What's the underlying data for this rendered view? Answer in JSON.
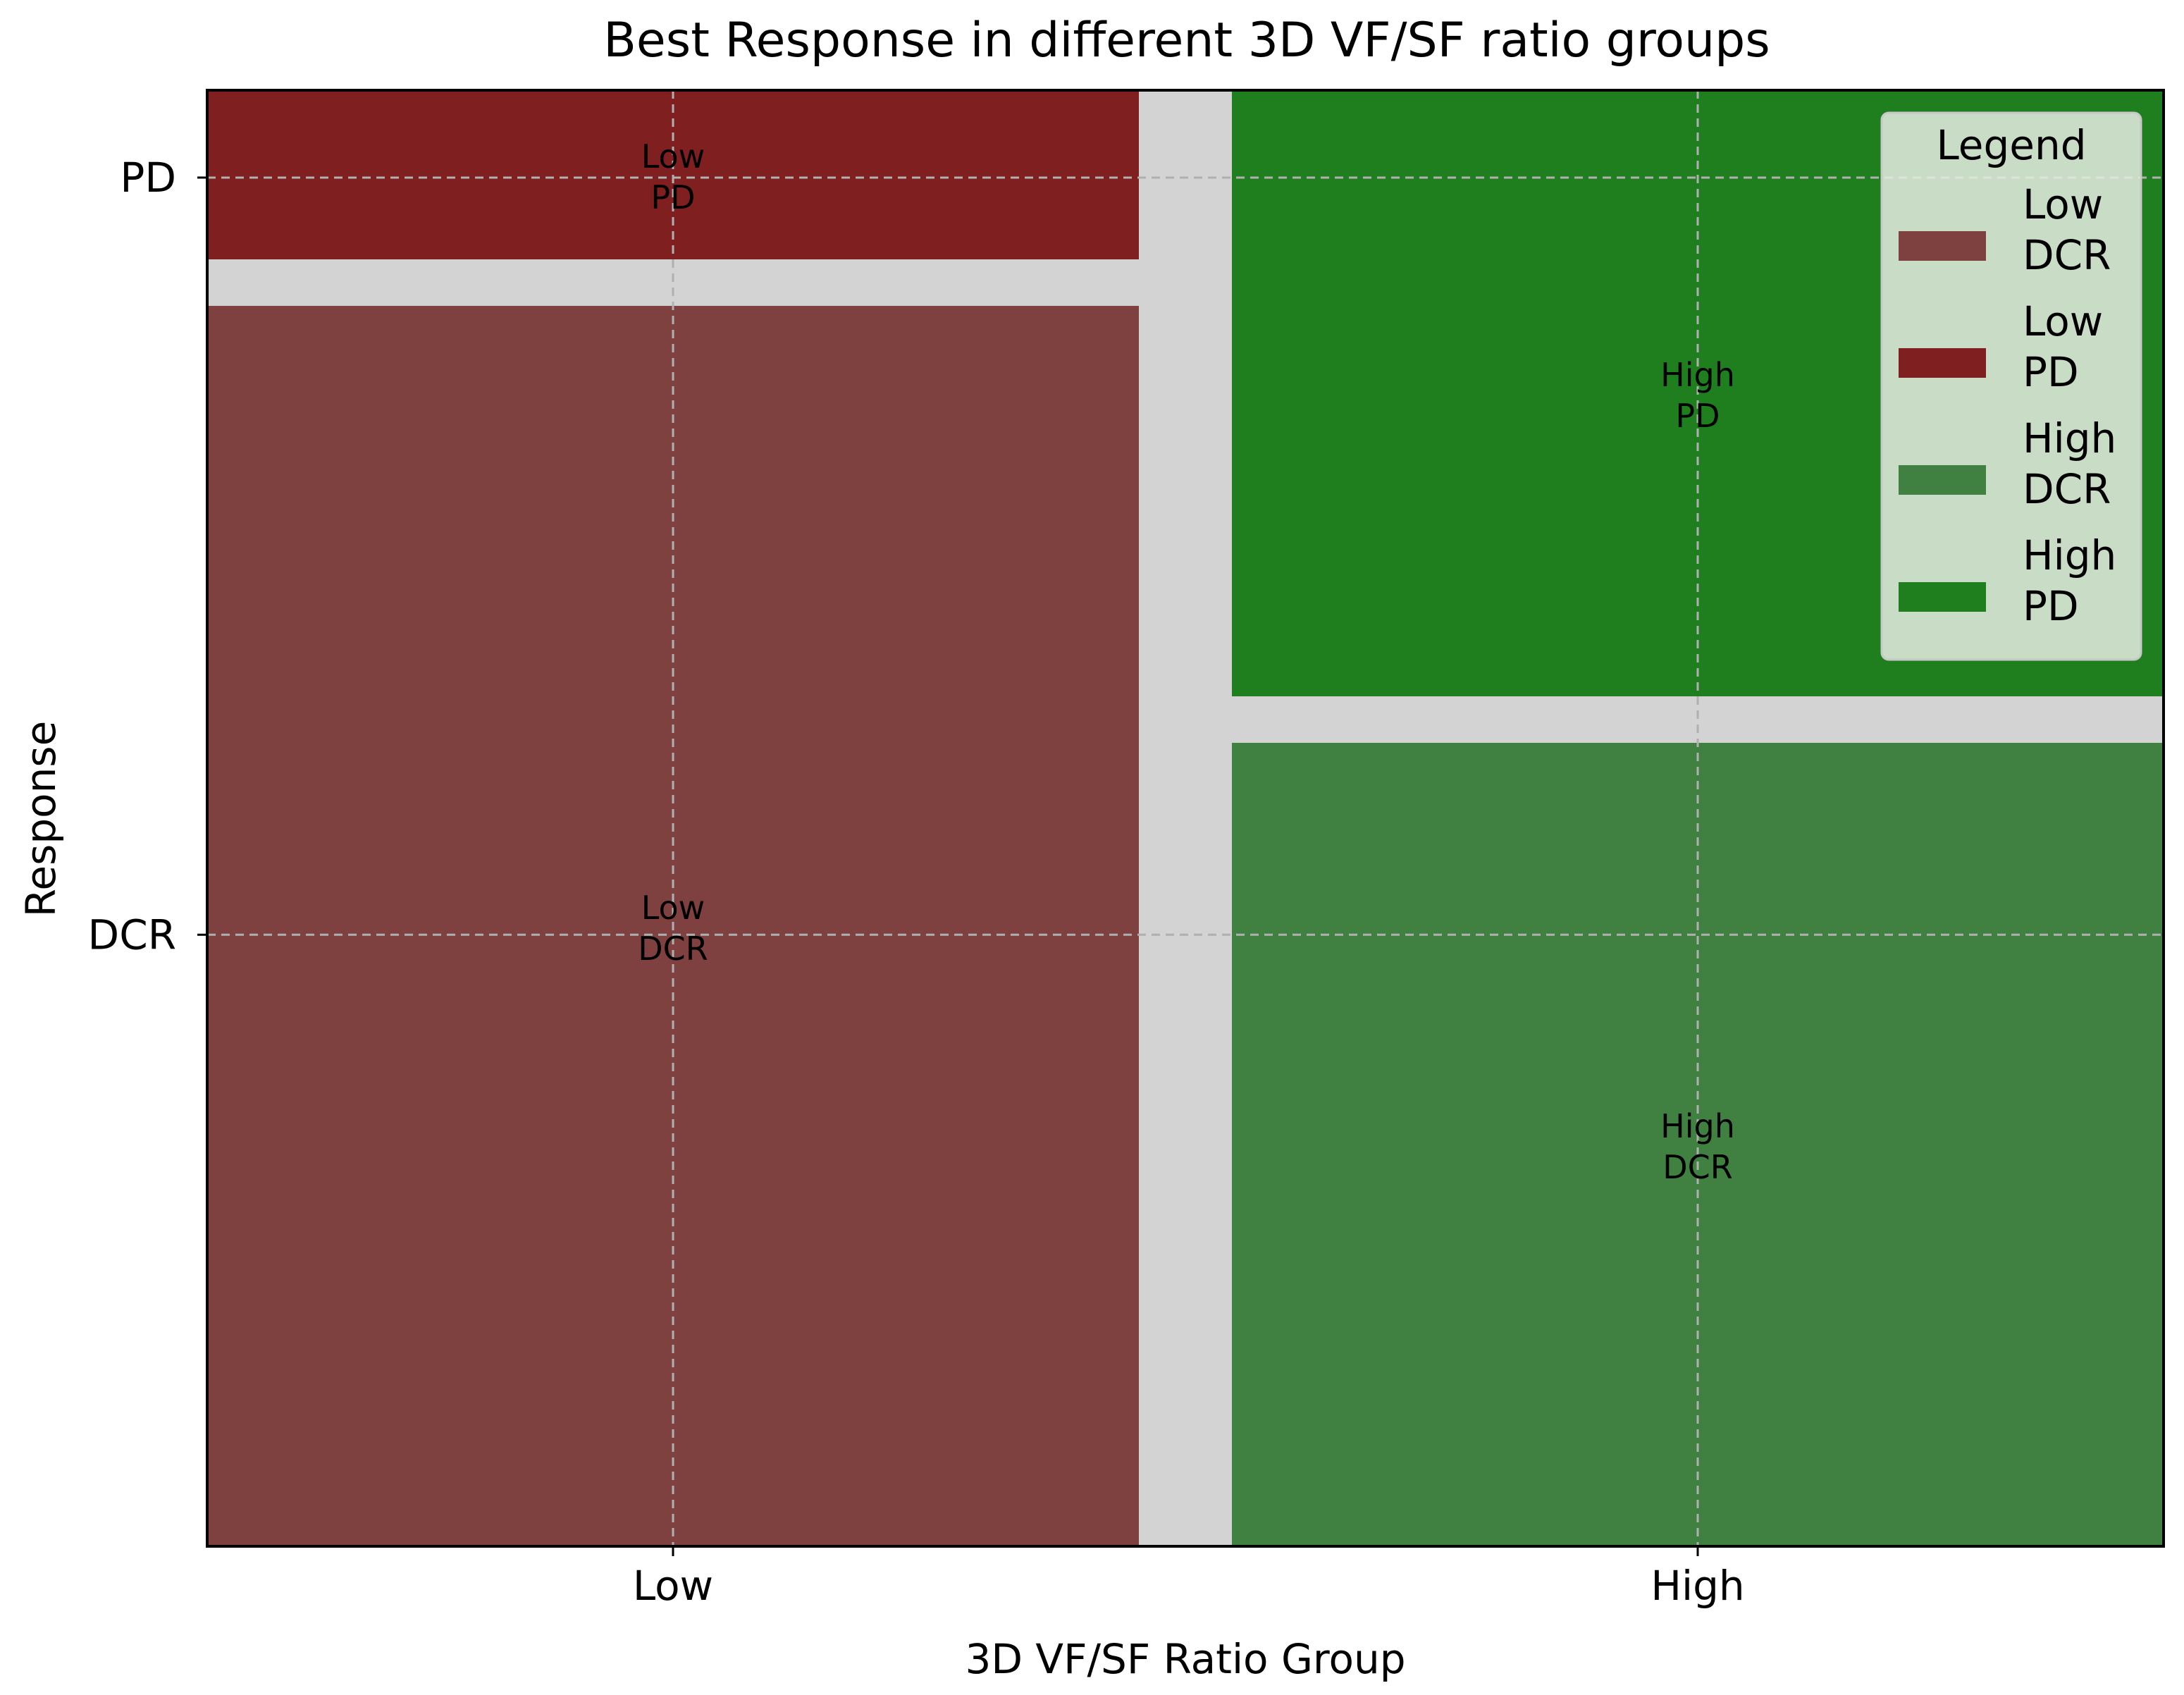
{
  "chart_data": {
    "type": "mosaic",
    "title": "Best Response in different 3D VF/SF ratio groups",
    "xlabel": "3D VF/SF Ratio Group",
    "ylabel": "Response",
    "x_categories": [
      "Low",
      "High"
    ],
    "x_widths": [
      0.5,
      0.5
    ],
    "y_categories": [
      "DCR",
      "PD"
    ],
    "y_ticks": [
      {
        "label": "DCR",
        "value": 0.42
      },
      {
        "label": "PD",
        "value": 0.94
      }
    ],
    "cells": [
      {
        "group": "Low",
        "response": "DCR",
        "proportion": 0.88,
        "label_line1": "Low",
        "label_line2": "DCR",
        "color": "#7f4040"
      },
      {
        "group": "Low",
        "response": "PD",
        "proportion": 0.12,
        "label_line1": "Low",
        "label_line2": "PD",
        "color": "#7f1f1f"
      },
      {
        "group": "High",
        "response": "DCR",
        "proportion": 0.57,
        "label_line1": "High",
        "label_line2": "DCR",
        "color": "#408040"
      },
      {
        "group": "High",
        "response": "PD",
        "proportion": 0.43,
        "label_line1": "High",
        "label_line2": "PD",
        "color": "#1f7f1f"
      }
    ],
    "gap_color": "#d3d3d3",
    "grid": true,
    "legend": {
      "title": "Legend",
      "placement": "top-right",
      "items": [
        {
          "line1": "Low",
          "line2": "DCR",
          "color": "#7f4040"
        },
        {
          "line1": "Low",
          "line2": "PD",
          "color": "#7f1f1f"
        },
        {
          "line1": "High",
          "line2": "DCR",
          "color": "#408040"
        },
        {
          "line1": "High",
          "line2": "PD",
          "color": "#1f7f1f"
        }
      ]
    }
  }
}
